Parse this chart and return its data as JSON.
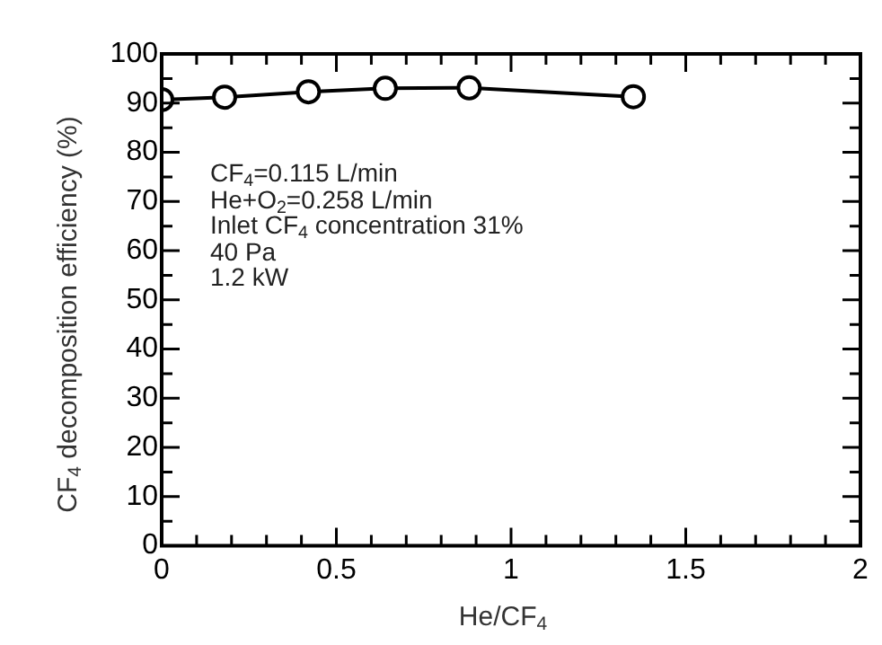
{
  "chart_data": {
    "type": "line",
    "xlabel": "He/CF$_{4}$",
    "ylabel": "CF$_{4}$ decomposition efficiency (%)",
    "x": [
      0,
      0.18,
      0.42,
      0.64,
      0.88,
      1.35
    ],
    "series": [
      {
        "color": "#000000",
        "values": [
          90.7,
          91.2,
          92.3,
          93.0,
          93.1,
          91.3
        ]
      }
    ],
    "marker": "circle",
    "line_style": "solid",
    "grid": false,
    "legend": false,
    "xlim": [
      0,
      2
    ],
    "xticks": [
      0,
      {
        "value": 0.1,
        "label": null
      },
      {
        "value": 0.2,
        "label": null
      },
      {
        "value": 0.3,
        "label": null
      },
      {
        "value": 0.4,
        "label": null
      },
      0.5,
      {
        "value": 0.6,
        "label": null
      },
      {
        "value": 0.7,
        "label": null
      },
      {
        "value": 0.8,
        "label": null
      },
      {
        "value": 0.9,
        "label": null
      },
      1,
      {
        "value": 1.1,
        "label": null
      },
      {
        "value": 1.2,
        "label": null
      },
      {
        "value": 1.3,
        "label": null
      },
      {
        "value": 1.4,
        "label": null
      },
      1.5,
      {
        "value": 1.6,
        "label": null
      },
      {
        "value": 1.7,
        "label": null
      },
      {
        "value": 1.8,
        "label": null
      },
      {
        "value": 1.9,
        "label": null
      },
      2
    ],
    "ylim": [
      0,
      100
    ],
    "yticks": [
      0,
      {
        "value": 5,
        "label": null
      },
      10,
      {
        "value": 15,
        "label": null
      },
      20,
      {
        "value": 25,
        "label": null
      },
      30,
      {
        "value": 35,
        "label": null
      },
      40,
      {
        "value": 45,
        "label": null
      },
      50,
      {
        "value": 55,
        "label": null
      },
      60,
      {
        "value": 65,
        "label": null
      },
      70,
      {
        "value": 75,
        "label": null
      },
      80,
      {
        "value": 85,
        "label": null
      },
      90,
      {
        "value": 95,
        "label": null
      },
      100
    ],
    "annotations": [
      "CF$_{4}$=0.115 L/min",
      "He+O$_{2}$=0.258 L/min",
      "Inlet CF$_{4}$ concentration 31%",
      "40 Pa",
      "1.2 kW"
    ]
  }
}
